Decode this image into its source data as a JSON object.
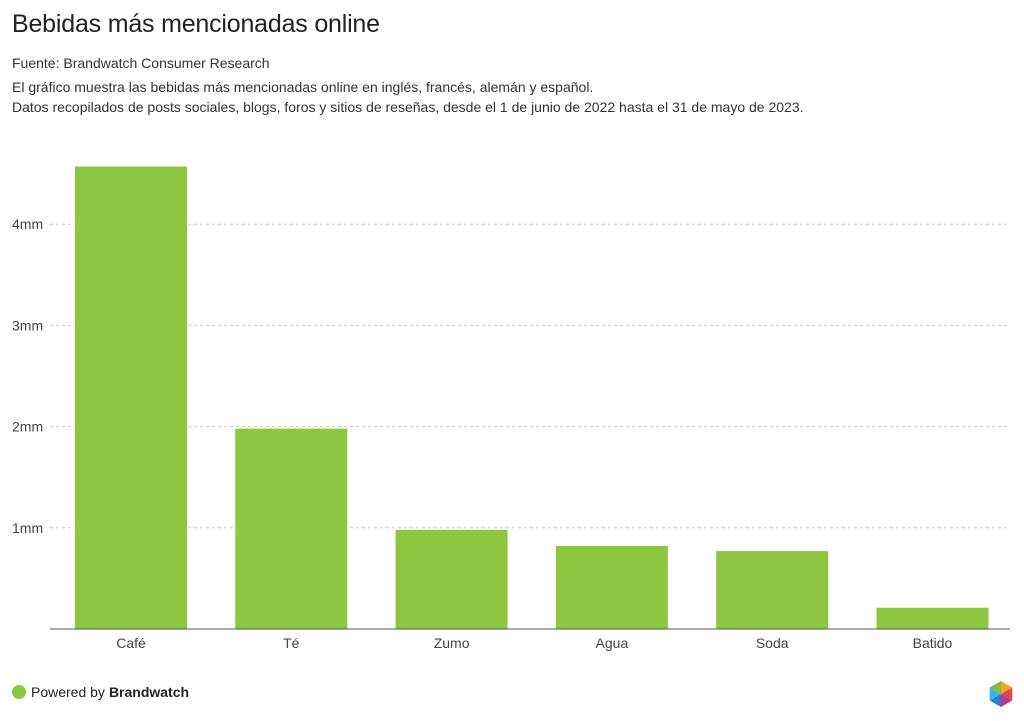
{
  "header": {
    "title": "Bebidas más mencionadas online",
    "source": "Fuente: Brandwatch Consumer Research",
    "description_line1": "El gráfico muestra las bebidas más mencionadas online en inglés, francés, alemán y español.",
    "description_line2": "Datos recopilados de posts sociales, blogs, foros y sitios de reseñas, desde el 1 de junio de 2022 hasta el 31 de mayo de 2023."
  },
  "footer": {
    "powered_by": "Powered by",
    "brand": "Brandwatch",
    "dot_color": "#8dc63f"
  },
  "chart_data": {
    "type": "bar",
    "categories": [
      "Café",
      "Té",
      "Zumo",
      "Agua",
      "Soda",
      "Batido"
    ],
    "values": [
      4.57,
      1.98,
      0.98,
      0.82,
      0.77,
      0.21
    ],
    "ylim": [
      0,
      4.6
    ],
    "yticks": [
      1,
      2,
      3,
      4
    ],
    "ytick_labels": [
      "1mm",
      "2mm",
      "3mm",
      "4mm"
    ],
    "bar_color": "#8dc63f",
    "grid": true,
    "xlabel": "",
    "ylabel": ""
  }
}
